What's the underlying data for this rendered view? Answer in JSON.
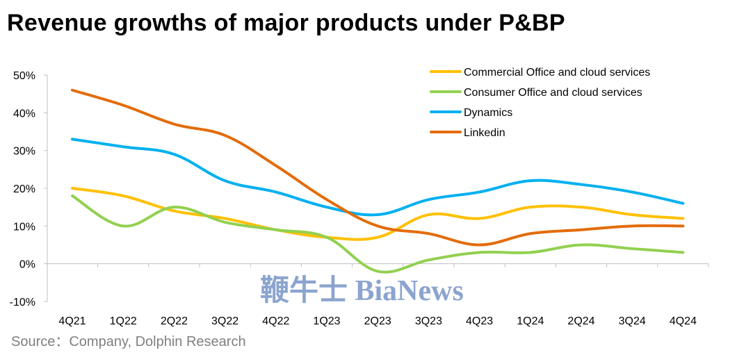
{
  "title": "Revenue growths of major products under P&BP",
  "source": "Source：Company, Dolphin Research",
  "watermark": "鞭牛士 BiaNews",
  "colors": {
    "Commercial Office and cloud services": "#FFC000",
    "Consumer Office and cloud services": "#92D050",
    "Dynamics": "#00B0F0",
    "Linkedin": "#E36C0A"
  },
  "chart_data": {
    "type": "line",
    "title": "Revenue growths of major products under P&BP",
    "xlabel": "",
    "ylabel": "",
    "categories": [
      "4Q21",
      "1Q22",
      "2Q22",
      "3Q22",
      "4Q22",
      "1Q23",
      "2Q23",
      "3Q23",
      "4Q23",
      "1Q24",
      "2Q24",
      "3Q24",
      "4Q24"
    ],
    "ylim": [
      -10,
      50
    ],
    "yticks": [
      -10,
      0,
      10,
      20,
      30,
      40,
      50
    ],
    "ytick_labels": [
      "-10%",
      "0%",
      "10%",
      "20%",
      "30%",
      "40%",
      "50%"
    ],
    "grid": false,
    "legend_position": "top-right",
    "series": [
      {
        "name": "Commercial Office and cloud services",
        "values": [
          20,
          18,
          14,
          12,
          9,
          7,
          7,
          13,
          12,
          15,
          15,
          13,
          12
        ]
      },
      {
        "name": "Consumer Office and cloud services",
        "values": [
          18,
          10,
          15,
          11,
          9,
          7,
          -2,
          1,
          3,
          3,
          5,
          4,
          3
        ]
      },
      {
        "name": "Dynamics",
        "values": [
          33,
          31,
          29,
          22,
          19,
          15,
          13,
          17,
          19,
          22,
          21,
          19,
          16
        ]
      },
      {
        "name": "Linkedin",
        "values": [
          46,
          42,
          37,
          34,
          26,
          17,
          10,
          8,
          5,
          8,
          9,
          10,
          10
        ]
      }
    ]
  }
}
